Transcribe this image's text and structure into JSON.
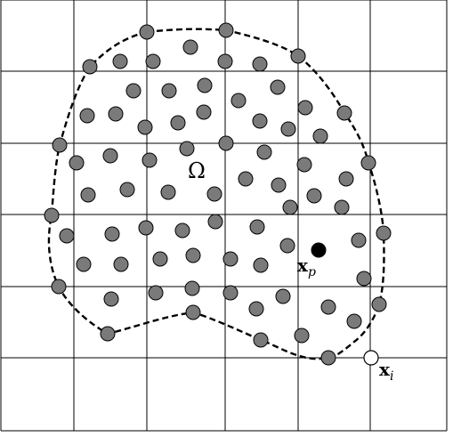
{
  "labels": {
    "domain": "Ω",
    "particle_main": "x",
    "particle_sub": "p",
    "node_main": "x",
    "node_sub": "i"
  },
  "colors": {
    "particle_fill": "#7a7a7a",
    "highlight_particle": "#000000",
    "grid_node": "#ffffff",
    "lines": "#000000"
  }
}
